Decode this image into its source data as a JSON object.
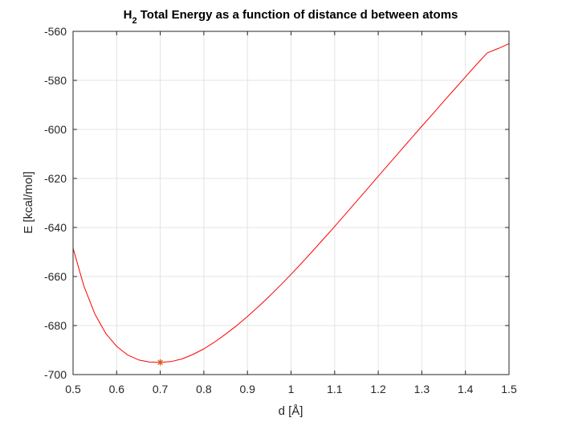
{
  "chart_data": {
    "type": "line",
    "title": {
      "prefix": "H",
      "subscript": "2",
      "rest": " Total Energy as a function of distance d between atoms"
    },
    "xlabel": "d [Å]",
    "ylabel": "E [kcal/mol]",
    "xlim": [
      0.5,
      1.5
    ],
    "ylim": [
      -700,
      -560
    ],
    "xticks": [
      0.5,
      0.6,
      0.7,
      0.8,
      0.9,
      1,
      1.1,
      1.2,
      1.3,
      1.4,
      1.5
    ],
    "xtick_labels": [
      "0.5",
      "0.6",
      "0.7",
      "0.8",
      "0.9",
      "1",
      "1.1",
      "1.2",
      "1.3",
      "1.4",
      "1.5"
    ],
    "yticks": [
      -700,
      -680,
      -660,
      -640,
      -620,
      -600,
      -580,
      -560
    ],
    "ytick_labels": [
      "-700",
      "-680",
      "-660",
      "-640",
      "-620",
      "-600",
      "-580",
      "-560"
    ],
    "grid": true,
    "box": true,
    "series": [
      {
        "color": "#ff0000",
        "x": [
          0.5,
          0.525,
          0.55,
          0.575,
          0.6,
          0.625,
          0.65,
          0.675,
          0.7,
          0.725,
          0.75,
          0.775,
          0.8,
          0.825,
          0.85,
          0.875,
          0.9,
          0.925,
          0.95,
          0.975,
          1.0,
          1.025,
          1.05,
          1.075,
          1.1,
          1.125,
          1.15,
          1.175,
          1.2,
          1.225,
          1.25,
          1.275,
          1.3,
          1.325,
          1.35,
          1.375,
          1.4,
          1.425,
          1.45,
          1.475,
          1.5
        ],
        "y": [
          -648.5,
          -664.0,
          -675.3,
          -683.2,
          -688.5,
          -692.0,
          -694.0,
          -694.9,
          -695.0,
          -694.7,
          -693.6,
          -691.8,
          -689.5,
          -686.7,
          -683.5,
          -680.1,
          -676.3,
          -672.3,
          -668.1,
          -663.7,
          -659.1,
          -654.4,
          -649.5,
          -644.6,
          -639.6,
          -634.5,
          -629.4,
          -624.3,
          -619.1,
          -614.0,
          -608.9,
          -603.8,
          -598.7,
          -593.7,
          -588.6,
          -583.6,
          -578.6,
          -573.6,
          -568.8,
          -567.0,
          -565.0
        ]
      }
    ],
    "minimum_marker": {
      "x": 0.7,
      "y": -695,
      "color": "#d95319",
      "symbol": "*"
    }
  }
}
